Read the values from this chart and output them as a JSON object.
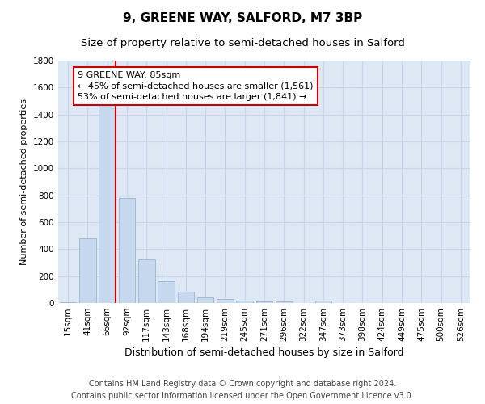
{
  "title": "9, GREENE WAY, SALFORD, M7 3BP",
  "subtitle": "Size of property relative to semi-detached houses in Salford",
  "xlabel": "Distribution of semi-detached houses by size in Salford",
  "ylabel": "Number of semi-detached properties",
  "footer_line1": "Contains HM Land Registry data © Crown copyright and database right 2024.",
  "footer_line2": "Contains public sector information licensed under the Open Government Licence v3.0.",
  "categories": [
    "15sqm",
    "41sqm",
    "66sqm",
    "92sqm",
    "117sqm",
    "143sqm",
    "168sqm",
    "194sqm",
    "219sqm",
    "245sqm",
    "271sqm",
    "296sqm",
    "322sqm",
    "347sqm",
    "373sqm",
    "398sqm",
    "424sqm",
    "449sqm",
    "475sqm",
    "500sqm",
    "526sqm"
  ],
  "values": [
    5,
    480,
    1530,
    780,
    325,
    160,
    85,
    45,
    30,
    20,
    15,
    15,
    0,
    20,
    0,
    0,
    0,
    0,
    0,
    0,
    0
  ],
  "bar_color": "#c5d8ed",
  "bar_edge_color": "#9ab4d0",
  "property_bin_index": 2,
  "vline_color": "#cc0000",
  "annotation_text_line1": "9 GREENE WAY: 85sqm",
  "annotation_text_line2": "← 45% of semi-detached houses are smaller (1,561)",
  "annotation_text_line3": "53% of semi-detached houses are larger (1,841) →",
  "annotation_box_color": "#ffffff",
  "annotation_box_edge_color": "#cc0000",
  "ylim": [
    0,
    1800
  ],
  "yticks": [
    0,
    200,
    400,
    600,
    800,
    1000,
    1200,
    1400,
    1600,
    1800
  ],
  "background_color": "#ffffff",
  "grid_color": "#c8d4e8",
  "plot_bg_color": "#dde8f4",
  "title_fontsize": 11,
  "subtitle_fontsize": 9.5,
  "xlabel_fontsize": 9,
  "ylabel_fontsize": 8,
  "tick_fontsize": 7.5,
  "footer_fontsize": 7,
  "annotation_fontsize": 8
}
